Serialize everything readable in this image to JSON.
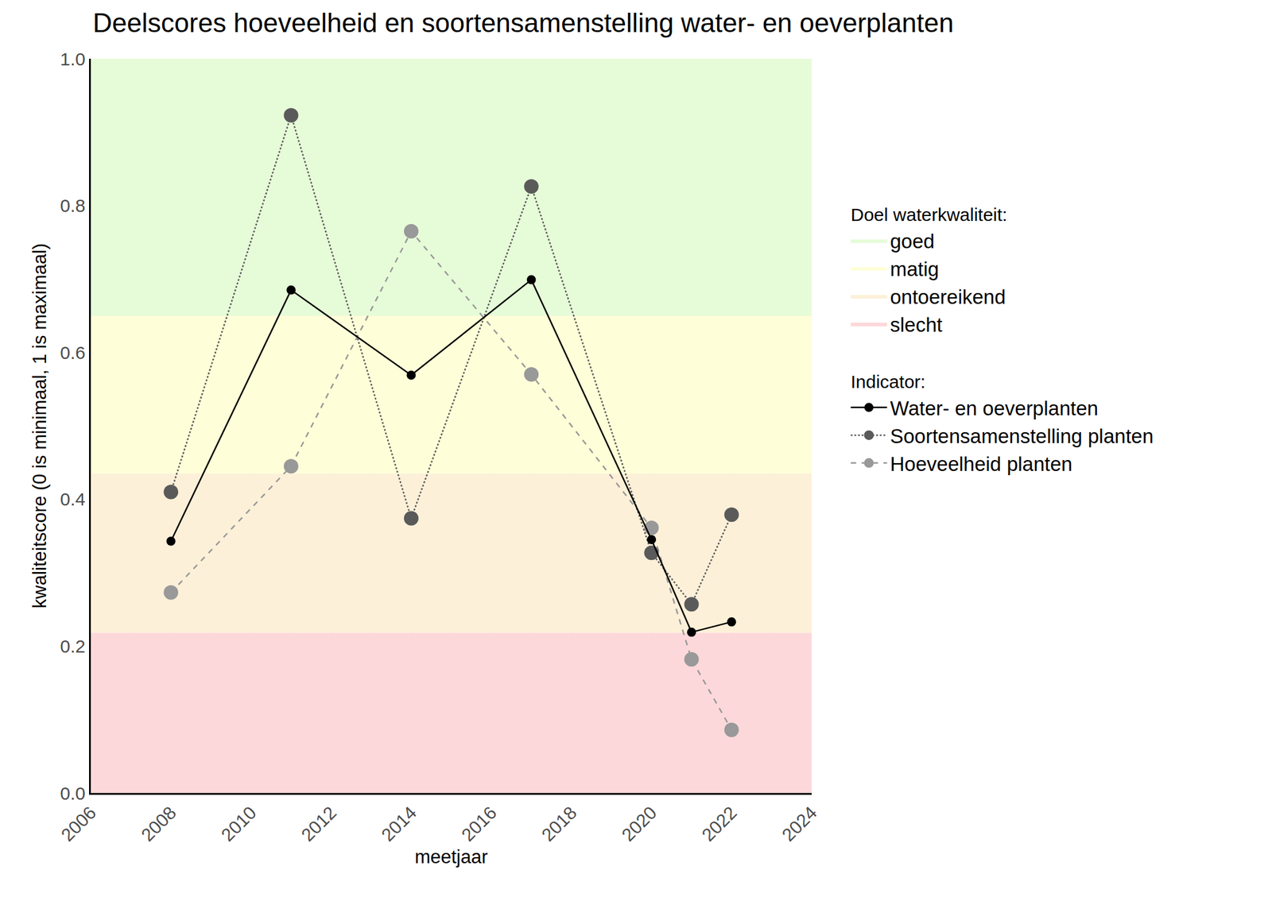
{
  "chart_data": {
    "type": "line",
    "title": "Deelscores hoeveelheid en soortensamenstelling water- en oeverplanten",
    "x_label": "meetjaar",
    "y_label": "kwaliteitscore (0 is minimaal, 1 is maximaal)",
    "x": [
      2008,
      2011,
      2014,
      2017,
      2020,
      2021,
      2022
    ],
    "xlim": [
      2006,
      2024
    ],
    "xticks": [
      2006,
      2008,
      2010,
      2012,
      2014,
      2016,
      2018,
      2020,
      2022,
      2024
    ],
    "ylim": [
      0,
      1
    ],
    "yticks": [
      {
        "value": 0,
        "label": "0.0"
      },
      0.2,
      0.4,
      0.6,
      0.8,
      {
        "value": 1,
        "label": "1.0"
      }
    ],
    "grid": true,
    "legend": "right",
    "bands_title": "Doel waterkwaliteit:",
    "bands": [
      {
        "name": "goed",
        "from": 0.65,
        "to": 1,
        "color": "#e6fcd8"
      },
      {
        "name": "matig",
        "from": 0.435,
        "to": 0.65,
        "color": "#fefed8"
      },
      {
        "name": "ontoereikend",
        "from": 0.218,
        "to": 0.435,
        "color": "#fdf0d8"
      },
      {
        "name": "slecht",
        "from": 0,
        "to": 0.218,
        "color": "#fdd8da"
      }
    ],
    "series_title": "Indicator:",
    "series": [
      {
        "name": "Water- en oeverplanten",
        "color": "#000000",
        "line_style": "solid",
        "marker": "circle",
        "values": [
          0.343,
          0.685,
          0.569,
          0.699,
          0.345,
          0.219,
          0.233
        ]
      },
      {
        "name": "Soortensamenstelling planten",
        "color": "#5a5a5a",
        "line_style": "dot",
        "marker": "circle",
        "values": [
          0.41,
          0.923,
          0.374,
          0.826,
          0.327,
          0.257,
          0.379
        ]
      },
      {
        "name": "Hoeveelheid planten",
        "color": "#999999",
        "line_style": "dash",
        "marker": "circle",
        "values": [
          0.273,
          0.445,
          0.765,
          0.57,
          0.361,
          0.182,
          0.086
        ]
      }
    ]
  }
}
